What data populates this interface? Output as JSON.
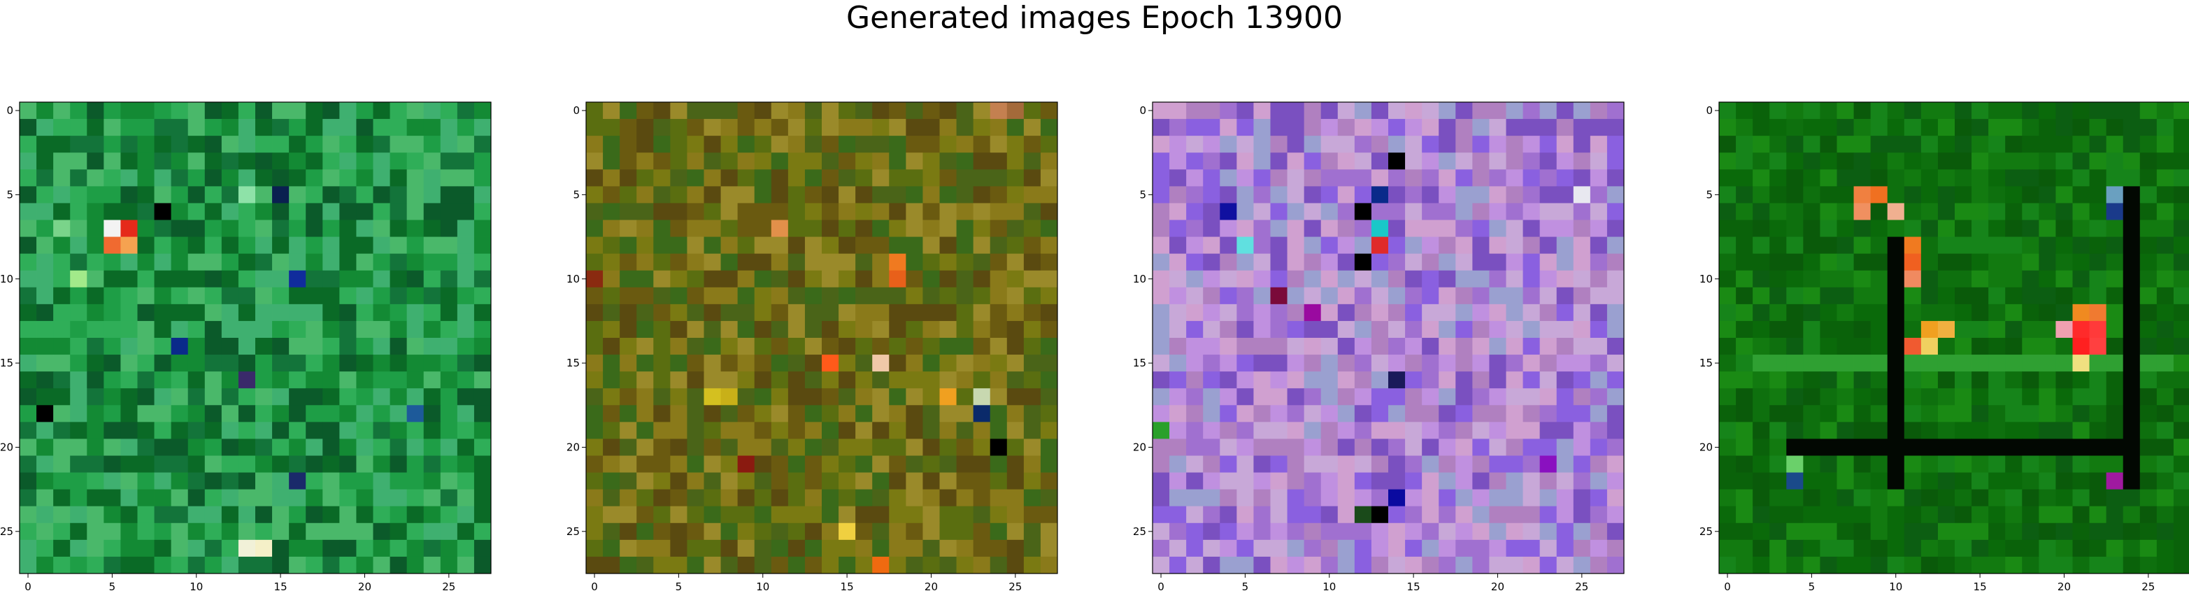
{
  "figure": {
    "title": "Generated images Epoch 13900"
  },
  "chart_data": [
    {
      "type": "heatmap",
      "image_size": 28,
      "x_ticks": [
        0,
        5,
        10,
        15,
        20,
        25
      ],
      "y_ticks": [
        0,
        5,
        10,
        15,
        20,
        25
      ],
      "xlim": [
        -0.5,
        27.5
      ],
      "ylim": [
        27.5,
        -0.5
      ],
      "dominant_color": "green",
      "palette": [
        "#0a6a26",
        "#138a34",
        "#1e9e46",
        "#2fae58",
        "#13743a",
        "#4ab86a",
        "#0b5a2a",
        "#3fb070"
      ],
      "highlights": [
        {
          "row": 7,
          "col": 5,
          "color": "#f3f3f3"
        },
        {
          "row": 7,
          "col": 6,
          "color": "#e52a1a"
        },
        {
          "row": 8,
          "col": 5,
          "color": "#f06a30"
        },
        {
          "row": 8,
          "col": 6,
          "color": "#f6a250"
        },
        {
          "row": 6,
          "col": 8,
          "color": "#000000"
        },
        {
          "row": 5,
          "col": 13,
          "color": "#8ee2a8"
        },
        {
          "row": 5,
          "col": 15,
          "color": "#0a2050"
        },
        {
          "row": 10,
          "col": 16,
          "color": "#102c9c"
        },
        {
          "row": 14,
          "col": 9,
          "color": "#0a2a8a"
        },
        {
          "row": 16,
          "col": 13,
          "color": "#3a2a6a"
        },
        {
          "row": 18,
          "col": 1,
          "color": "#000000"
        },
        {
          "row": 18,
          "col": 23,
          "color": "#1d5a9a"
        },
        {
          "row": 22,
          "col": 16,
          "color": "#1a2a6a"
        },
        {
          "row": 26,
          "col": 14,
          "color": "#f5f0c8"
        },
        {
          "row": 26,
          "col": 13,
          "color": "#f1f1d8"
        },
        {
          "row": 7,
          "col": 2,
          "color": "#7ad48a"
        },
        {
          "row": 10,
          "col": 3,
          "color": "#a2ea8a"
        }
      ]
    },
    {
      "type": "heatmap",
      "image_size": 28,
      "x_ticks": [
        0,
        5,
        10,
        15,
        20,
        25
      ],
      "y_ticks": [
        0,
        5,
        10,
        15,
        20,
        25
      ],
      "xlim": [
        -0.5,
        27.5
      ],
      "ylim": [
        27.5,
        -0.5
      ],
      "dominant_color": "olive",
      "palette": [
        "#5a6e10",
        "#7a7a12",
        "#4a6418",
        "#8a7a1a",
        "#6a5a10",
        "#3a6a1a",
        "#9a8a2a",
        "#5a4a10"
      ],
      "highlights": [
        {
          "row": 0,
          "col": 24,
          "color": "#c48050"
        },
        {
          "row": 0,
          "col": 25,
          "color": "#a46a3a"
        },
        {
          "row": 7,
          "col": 11,
          "color": "#e2904a"
        },
        {
          "row": 9,
          "col": 18,
          "color": "#f07a20"
        },
        {
          "row": 10,
          "col": 18,
          "color": "#e8601a"
        },
        {
          "row": 10,
          "col": 0,
          "color": "#8a2a10"
        },
        {
          "row": 15,
          "col": 14,
          "color": "#ff5a1a"
        },
        {
          "row": 15,
          "col": 17,
          "color": "#f0c8a8"
        },
        {
          "row": 17,
          "col": 7,
          "color": "#d4c020"
        },
        {
          "row": 17,
          "col": 8,
          "color": "#c8b018"
        },
        {
          "row": 17,
          "col": 21,
          "color": "#f0a020"
        },
        {
          "row": 18,
          "col": 23,
          "color": "#0a2a6a"
        },
        {
          "row": 17,
          "col": 23,
          "color": "#c8d8b0"
        },
        {
          "row": 20,
          "col": 24,
          "color": "#000000"
        },
        {
          "row": 25,
          "col": 15,
          "color": "#f0d040"
        },
        {
          "row": 27,
          "col": 17,
          "color": "#f06a10"
        },
        {
          "row": 21,
          "col": 9,
          "color": "#8a1a10"
        }
      ]
    },
    {
      "type": "heatmap",
      "image_size": 28,
      "x_ticks": [
        0,
        5,
        10,
        15,
        20,
        25
      ],
      "y_ticks": [
        0,
        5,
        10,
        15,
        20,
        25
      ],
      "xlim": [
        -0.5,
        27.5
      ],
      "ylim": [
        27.5,
        -0.5
      ],
      "dominant_color": "purple",
      "palette": [
        "#a070d0",
        "#c090e0",
        "#7a50c0",
        "#d0a0d0",
        "#8a60e0",
        "#b080c0",
        "#9aa0d0",
        "#c8a8d8"
      ],
      "highlights": [
        {
          "row": 3,
          "col": 14,
          "color": "#000000"
        },
        {
          "row": 5,
          "col": 13,
          "color": "#0a2a8a"
        },
        {
          "row": 6,
          "col": 4,
          "color": "#1010a0"
        },
        {
          "row": 6,
          "col": 12,
          "color": "#000000"
        },
        {
          "row": 7,
          "col": 13,
          "color": "#1ac8c8"
        },
        {
          "row": 8,
          "col": 5,
          "color": "#60e0e0"
        },
        {
          "row": 8,
          "col": 13,
          "color": "#e02a2a"
        },
        {
          "row": 9,
          "col": 12,
          "color": "#000000"
        },
        {
          "row": 11,
          "col": 7,
          "color": "#7a0a3a"
        },
        {
          "row": 16,
          "col": 14,
          "color": "#1a1a5a"
        },
        {
          "row": 19,
          "col": 0,
          "color": "#2aa02a"
        },
        {
          "row": 23,
          "col": 14,
          "color": "#0a0aa0"
        },
        {
          "row": 24,
          "col": 13,
          "color": "#000000"
        },
        {
          "row": 24,
          "col": 12,
          "color": "#1a4a1a"
        },
        {
          "row": 5,
          "col": 25,
          "color": "#e8e8f0"
        },
        {
          "row": 12,
          "col": 9,
          "color": "#9a0aa0"
        },
        {
          "row": 21,
          "col": 23,
          "color": "#8a10c0"
        }
      ]
    },
    {
      "type": "heatmap",
      "image_size": 28,
      "x_ticks": [
        0,
        5,
        10,
        15,
        20,
        25
      ],
      "y_ticks": [
        0,
        5,
        10,
        15,
        20,
        25
      ],
      "xlim": [
        -0.5,
        27.5
      ],
      "ylim": [
        27.5,
        -0.5
      ],
      "dominant_color": "green",
      "palette": [
        "#0a6a0a",
        "#127a10",
        "#0a5a0a",
        "#1a8a14",
        "#0e700e",
        "#0a620a",
        "#16841a",
        "#0c5e12"
      ],
      "highlights": [
        {
          "row": 5,
          "col": 8,
          "color": "#f08040"
        },
        {
          "row": 6,
          "col": 8,
          "color": "#f09060"
        },
        {
          "row": 5,
          "col": 9,
          "color": "#f07020"
        },
        {
          "row": 6,
          "col": 10,
          "color": "#f0b090"
        },
        {
          "row": 8,
          "col": 11,
          "color": "#f07a20"
        },
        {
          "row": 9,
          "col": 11,
          "color": "#f06020"
        },
        {
          "row": 10,
          "col": 11,
          "color": "#f08a60"
        },
        {
          "row": 13,
          "col": 12,
          "color": "#f0a020"
        },
        {
          "row": 13,
          "col": 13,
          "color": "#f0b040"
        },
        {
          "row": 14,
          "col": 11,
          "color": "#f05a30"
        },
        {
          "row": 14,
          "col": 12,
          "color": "#f0d060"
        },
        {
          "row": 12,
          "col": 21,
          "color": "#f08a20"
        },
        {
          "row": 12,
          "col": 22,
          "color": "#f07a30"
        },
        {
          "row": 13,
          "col": 21,
          "color": "#ff2a2a"
        },
        {
          "row": 13,
          "col": 22,
          "color": "#ff3a3a"
        },
        {
          "row": 14,
          "col": 21,
          "color": "#ff2020"
        },
        {
          "row": 14,
          "col": 22,
          "color": "#ff4040"
        },
        {
          "row": 15,
          "col": 21,
          "color": "#f0e080"
        },
        {
          "row": 13,
          "col": 20,
          "color": "#f0a0b0"
        },
        {
          "row": 5,
          "col": 23,
          "color": "#6aa0c0"
        },
        {
          "row": 6,
          "col": 23,
          "color": "#1a3a8a"
        },
        {
          "row": 22,
          "col": 23,
          "color": "#a01aa0"
        },
        {
          "row": 22,
          "col": 4,
          "color": "#1a4a8a"
        },
        {
          "row": 21,
          "col": 4,
          "color": "#6ad06a"
        }
      ],
      "dark_lines": [
        {
          "orient": "v",
          "index": 10,
          "from": 8,
          "to": 22
        },
        {
          "orient": "v",
          "index": 24,
          "from": 5,
          "to": 22
        },
        {
          "orient": "h",
          "index": 20,
          "from": 4,
          "to": 24
        }
      ],
      "light_lines": [
        {
          "orient": "h",
          "index": 15,
          "from": 2,
          "to": 26
        }
      ]
    }
  ]
}
